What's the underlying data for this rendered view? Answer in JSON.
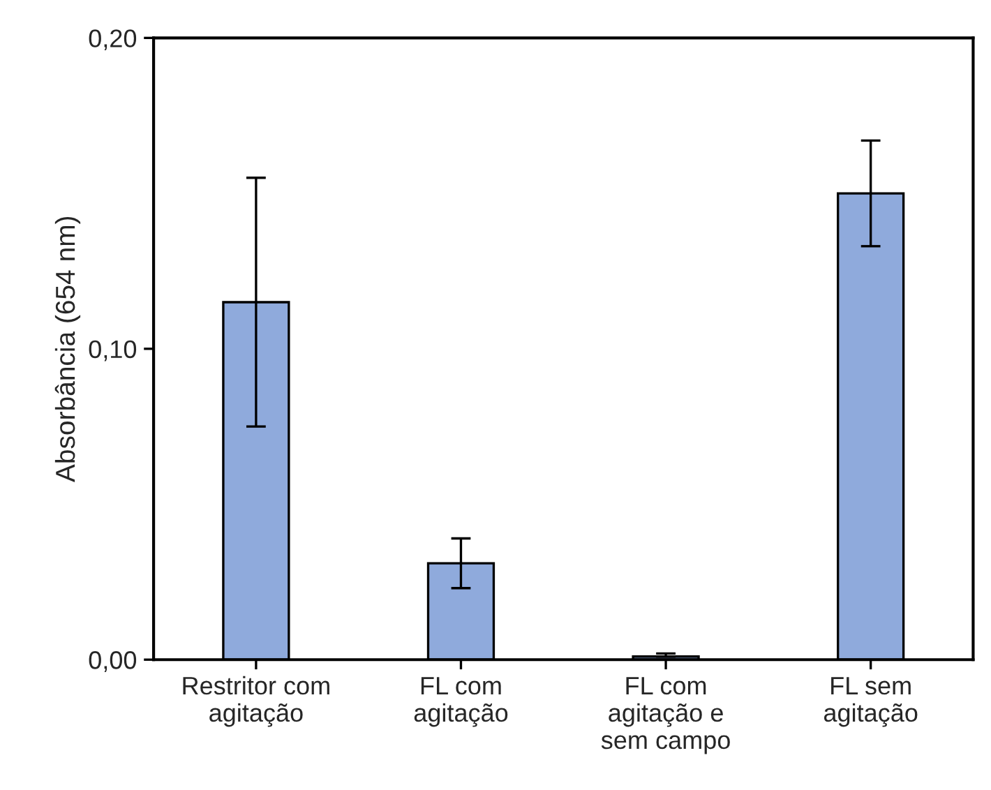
{
  "chart_data": {
    "type": "bar",
    "ylabel": "Absorbância (654 nm)",
    "categories": [
      "Restritor com\nagitação",
      "FL com\nagitação",
      "FL com\nagitação e\nsem campo",
      "FL sem\nagitação"
    ],
    "values": [
      0.115,
      0.031,
      0.001,
      0.15
    ],
    "errors": [
      0.04,
      0.008,
      [
        0.001,
        0.002
      ],
      0.017
    ],
    "color": "#8faadc",
    "ylim": [
      0,
      0.2
    ],
    "yticks": [
      {
        "value": 0,
        "label": "0,00"
      },
      {
        "value": 0.1,
        "label": "0,10"
      },
      {
        "value": 0.2,
        "label": "0,20"
      }
    ],
    "grid": false
  }
}
